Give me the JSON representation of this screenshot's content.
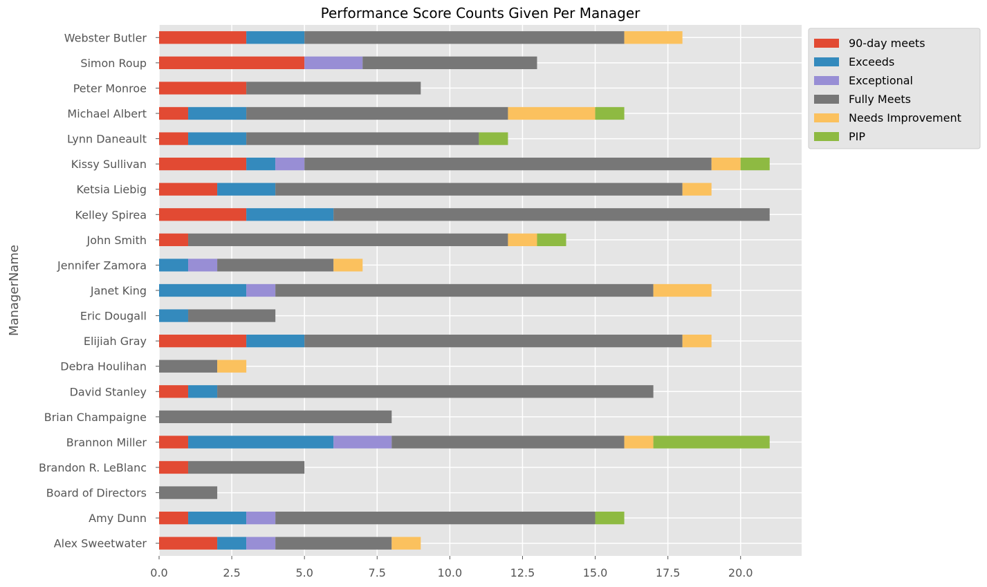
{
  "chart_data": {
    "type": "bar",
    "orientation": "horizontal",
    "stacked": true,
    "title": "Performance Score Counts Given Per Manager",
    "xlabel": "",
    "ylabel": "ManagerName",
    "xlim": [
      0,
      22.1
    ],
    "xticks": [
      0.0,
      2.5,
      5.0,
      7.5,
      10.0,
      12.5,
      15.0,
      17.5,
      20.0
    ],
    "xtick_labels": [
      "0.0",
      "2.5",
      "5.0",
      "7.5",
      "10.0",
      "12.5",
      "15.0",
      "17.5",
      "20.0"
    ],
    "grid": true,
    "legend_position": "outside top-right",
    "categories": [
      "Alex Sweetwater",
      "Amy Dunn",
      "Board of Directors",
      "Brandon R. LeBlanc",
      "Brannon Miller",
      "Brian Champaigne",
      "David Stanley",
      "Debra Houlihan",
      "Elijiah Gray",
      "Eric Dougall",
      "Janet King",
      "Jennifer Zamora",
      "John Smith",
      "Kelley Spirea",
      "Ketsia Liebig",
      "Kissy Sullivan",
      "Lynn Daneault",
      "Michael Albert",
      "Peter Monroe",
      "Simon Roup",
      "Webster Butler"
    ],
    "series": [
      {
        "name": "90-day meets",
        "color": "#E24A33",
        "values": [
          2,
          1,
          0,
          1,
          1,
          0,
          1,
          0,
          3,
          0,
          0,
          0,
          1,
          3,
          2,
          3,
          1,
          1,
          3,
          5,
          3
        ]
      },
      {
        "name": "Exceeds",
        "color": "#348ABD",
        "values": [
          1,
          2,
          0,
          0,
          5,
          0,
          1,
          0,
          2,
          1,
          3,
          1,
          0,
          3,
          2,
          1,
          2,
          2,
          0,
          0,
          2
        ]
      },
      {
        "name": "Exceptional",
        "color": "#988ED5",
        "values": [
          1,
          1,
          0,
          0,
          2,
          0,
          0,
          0,
          0,
          0,
          1,
          1,
          0,
          0,
          0,
          1,
          0,
          0,
          0,
          2,
          0
        ]
      },
      {
        "name": "Fully Meets",
        "color": "#777777",
        "values": [
          4,
          11,
          2,
          4,
          8,
          8,
          15,
          2,
          13,
          3,
          13,
          4,
          11,
          15,
          14,
          14,
          8,
          9,
          6,
          6,
          11
        ]
      },
      {
        "name": "Needs Improvement",
        "color": "#FBC15E",
        "values": [
          1,
          0,
          0,
          0,
          1,
          0,
          0,
          1,
          1,
          0,
          2,
          1,
          1,
          0,
          1,
          1,
          0,
          3,
          0,
          0,
          2
        ]
      },
      {
        "name": "PIP",
        "color": "#8EBA42",
        "values": [
          0,
          1,
          0,
          0,
          4,
          0,
          0,
          0,
          0,
          0,
          0,
          0,
          1,
          0,
          0,
          1,
          1,
          1,
          0,
          0,
          0
        ]
      }
    ]
  }
}
